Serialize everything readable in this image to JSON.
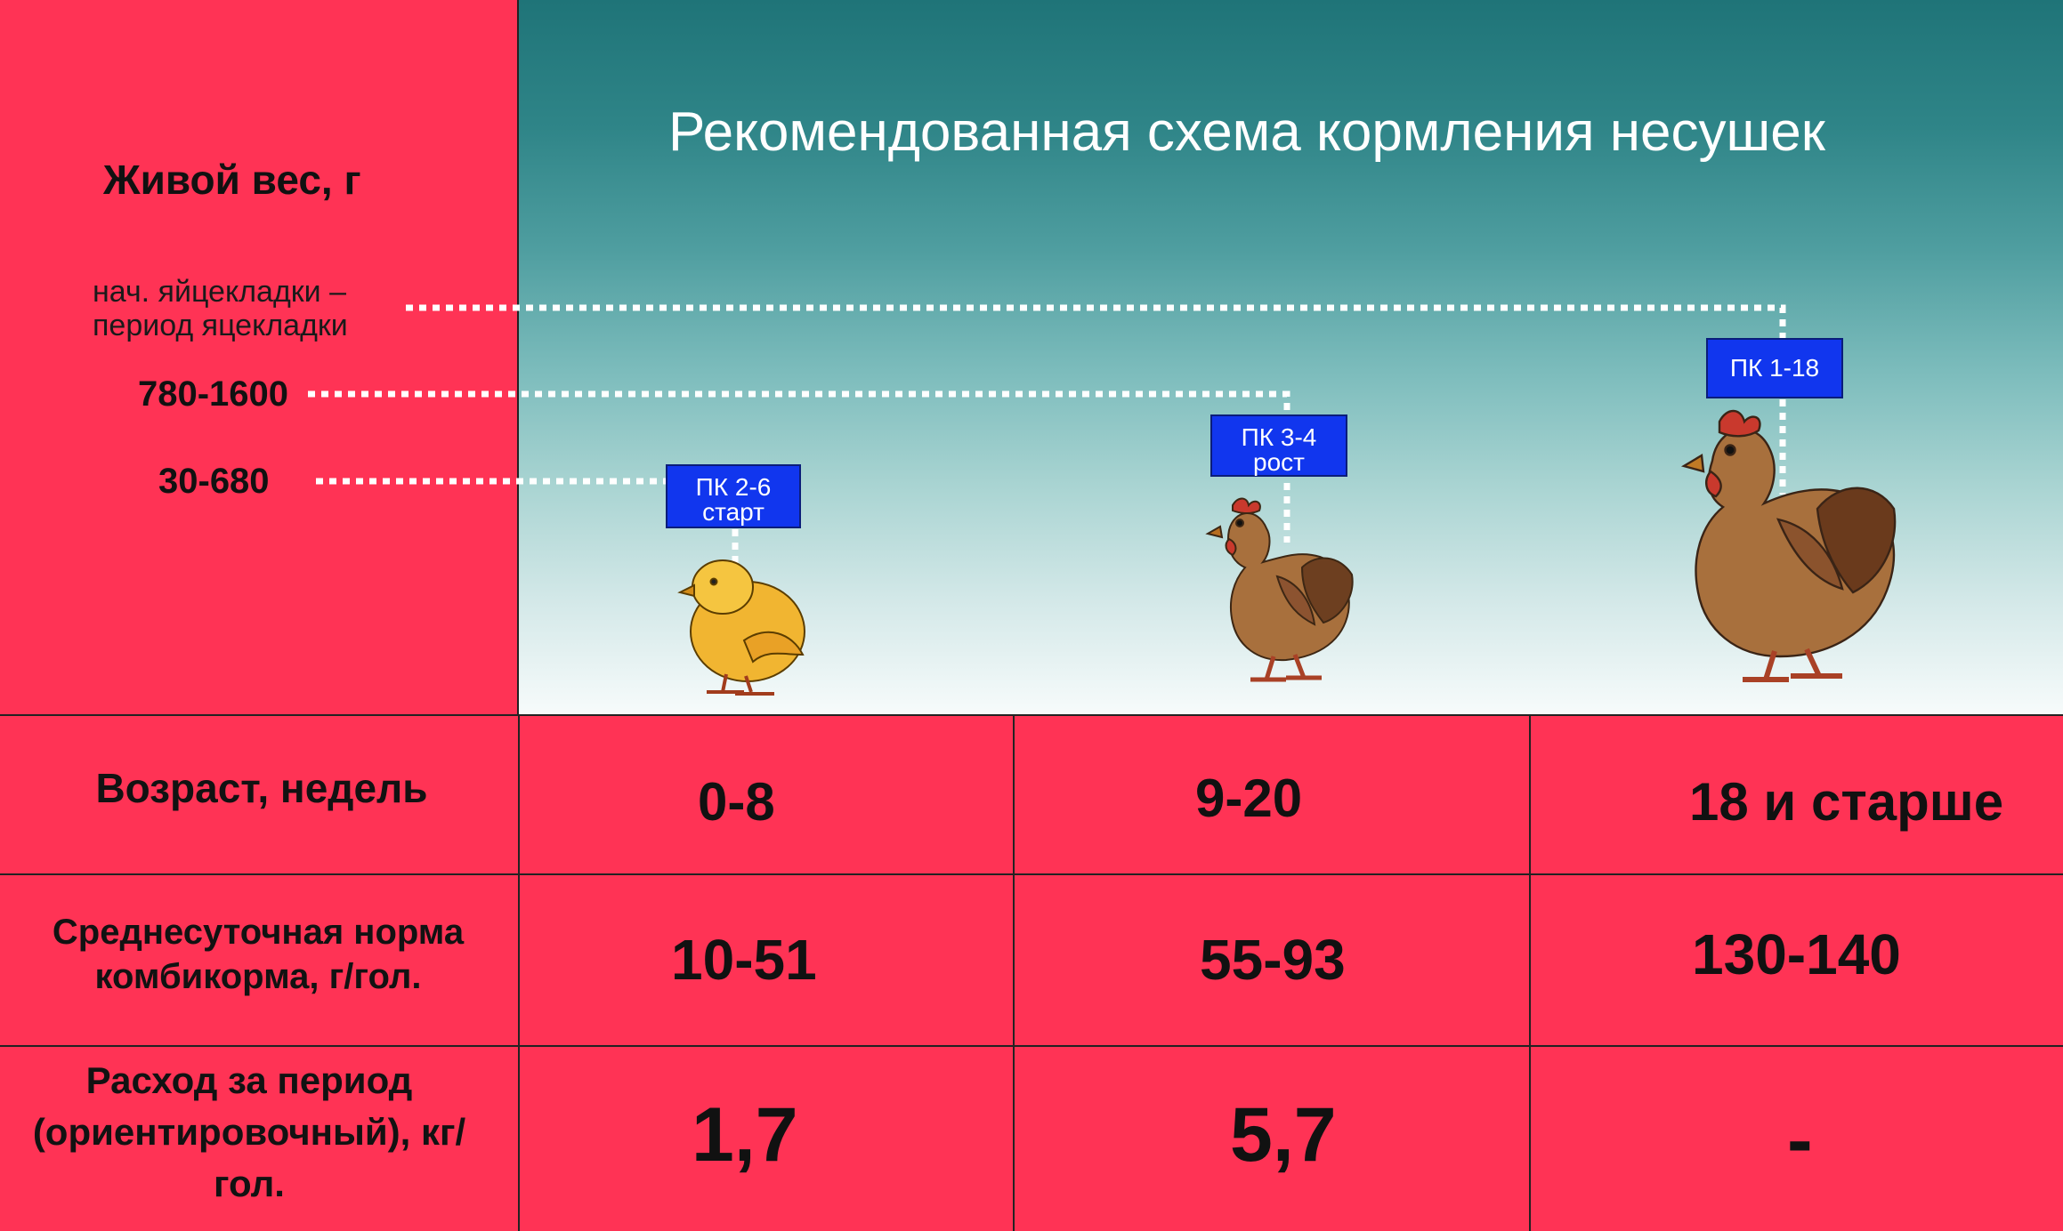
{
  "title": "Рекомендованная схема кормления несушек",
  "left_panel": {
    "weight_heading": "Живой вес, г",
    "weight_note_line1": "нач. яйцекладки –",
    "weight_note_line2": "период яцекладки",
    "weight_range_1": "780-1600",
    "weight_range_2": "30-680"
  },
  "tags": {
    "start": {
      "line1": "ПК 2-6",
      "line2": "старт"
    },
    "growth": {
      "line1": "ПК 3-4",
      "line2": "рост"
    },
    "layer": {
      "line1": "ПК 1-18",
      "line2": ""
    }
  },
  "table": {
    "row_labels": {
      "age": "Возраст, недель",
      "daily_norm": "Среднесуточная норма комбикорма, г/гол.",
      "period_expense": "Расход за период (ориентировочный), кг/гол."
    },
    "ages": [
      "0-8",
      "9-20",
      "18 и старше"
    ],
    "daily_norms": [
      "10-51",
      "55-93",
      "130-140"
    ],
    "period_expenses": [
      "1,7",
      "5,7",
      "-"
    ]
  },
  "colors": {
    "accent_red": "#ff3355",
    "tag_blue": "#1136ee",
    "teal_top": "#1f7478"
  },
  "icons": {
    "chick": "chick-icon",
    "pullet": "pullet-icon",
    "hen": "hen-icon"
  }
}
